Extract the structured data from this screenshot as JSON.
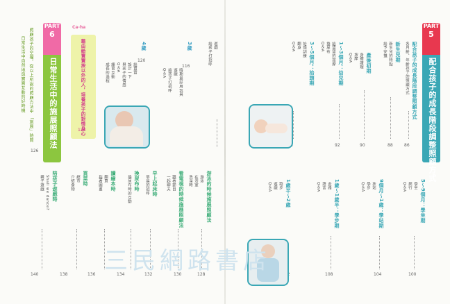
{
  "left_page": {
    "part_label": "PART",
    "part_number": "6",
    "part_title": "日常生活中的施展照顧法",
    "intro_1": "照顧孩子的空檔，從以上所說的照顧方法中",
    "intro_2": "日常生活中自然地與寶寶互動的好時機",
    "intro_tail": "「施展」時間",
    "intro_page": "126",
    "logo": "Ca-ha",
    "banner_title": "藉由給寶寶按以外的人，培養孩子的對情身心",
    "banner_page": "124",
    "col_3": {
      "head": "3歲",
      "page": "116",
      "items": [
        "時期最好用玩具",
        "遊戲",
        "給孩子打招呼",
        "Q＆A"
      ]
    },
    "col_4": {
      "head": "4歲",
      "page": "120",
      "items": [
        "給寶寶",
        "設計一下",
        "與孩子的情感",
        "Q＆A",
        "練習互動",
        "成長的過程"
      ]
    },
    "bottom_cols": [
      {
        "head": "游泳的時候施展照顧法",
        "page": "128",
        "items": [
          "游泳",
          "在浴室",
          "洗澡時"
        ]
      },
      {
        "head": "看電視的時候施展照顧法",
        "page": "130",
        "items": [
          "跟著節目",
          "一起聊天",
          "Q＆A"
        ]
      },
      {
        "head": "早上起床時",
        "page": "132",
        "items": [
          "早晨的招呼",
          "起床儀式"
        ]
      },
      {
        "head": "換尿布時",
        "page": "134",
        "items": [
          "換尿布時的互動",
          "肚子按摩"
        ]
      },
      {
        "head": "讀繪本時",
        "page": "136",
        "items": [
          "翻頁",
          "指著圖畫",
          "念出聲音"
        ]
      },
      {
        "head": "買菜時",
        "page": "138",
        "items": [
          "超市",
          "介紹食物"
        ]
      },
      {
        "head": "陪孩子遊戲時",
        "page": "140",
        "items": [
          "Shall we dance?",
          "親子遊戲"
        ]
      }
    ]
  },
  "right_page": {
    "part_label": "PART",
    "part_number": "5",
    "part_title": "配合孩子的成長階段調整照顧方式",
    "col_mid": {
      "head": "配合孩子的成長階段調整照顧方式",
      "page": "86",
      "items": [
        "各月齡、年齡孩子的照顧方式"
      ]
    },
    "col_newborn": {
      "head": "新生兒期",
      "page": "88",
      "items": [
        "新生兒的特點",
        "給予安撫"
      ]
    },
    "col_infant": {
      "head": "產後初期",
      "page": "90",
      "items": [
        "身體護理",
        "按摩",
        "Q＆A"
      ]
    },
    "col_1to3": {
      "head": "1～3個月：幼兒期",
      "page": "92",
      "items": [
        "給寶寶的按摩",
        "換尿布",
        "Q＆A"
      ]
    },
    "col_3to5": {
      "head": "3～5個月：抬頭期",
      "page": "96",
      "items": [
        "抬頭訓練",
        "翻身",
        "Q＆A"
      ]
    },
    "bottom_cols": [
      {
        "head": "5～9個月：學坐期",
        "page": "100",
        "items": [
          "學坐",
          "爬行",
          "Q＆A"
        ]
      },
      {
        "head": "9個月～1歲：學站期",
        "page": "104",
        "items": [
          "扶站",
          "學步",
          "Q＆A"
        ]
      },
      {
        "head": "1歲～1歲半：學步期",
        "page": "108",
        "items": [
          "走路",
          "語言",
          "Q＆A"
        ]
      },
      {
        "head": "1歲半～2歲",
        "page": "112",
        "items": [
          "跑步",
          "遊戲",
          "Q＆A"
        ]
      }
    ]
  },
  "watermark": "三民網路書店"
}
